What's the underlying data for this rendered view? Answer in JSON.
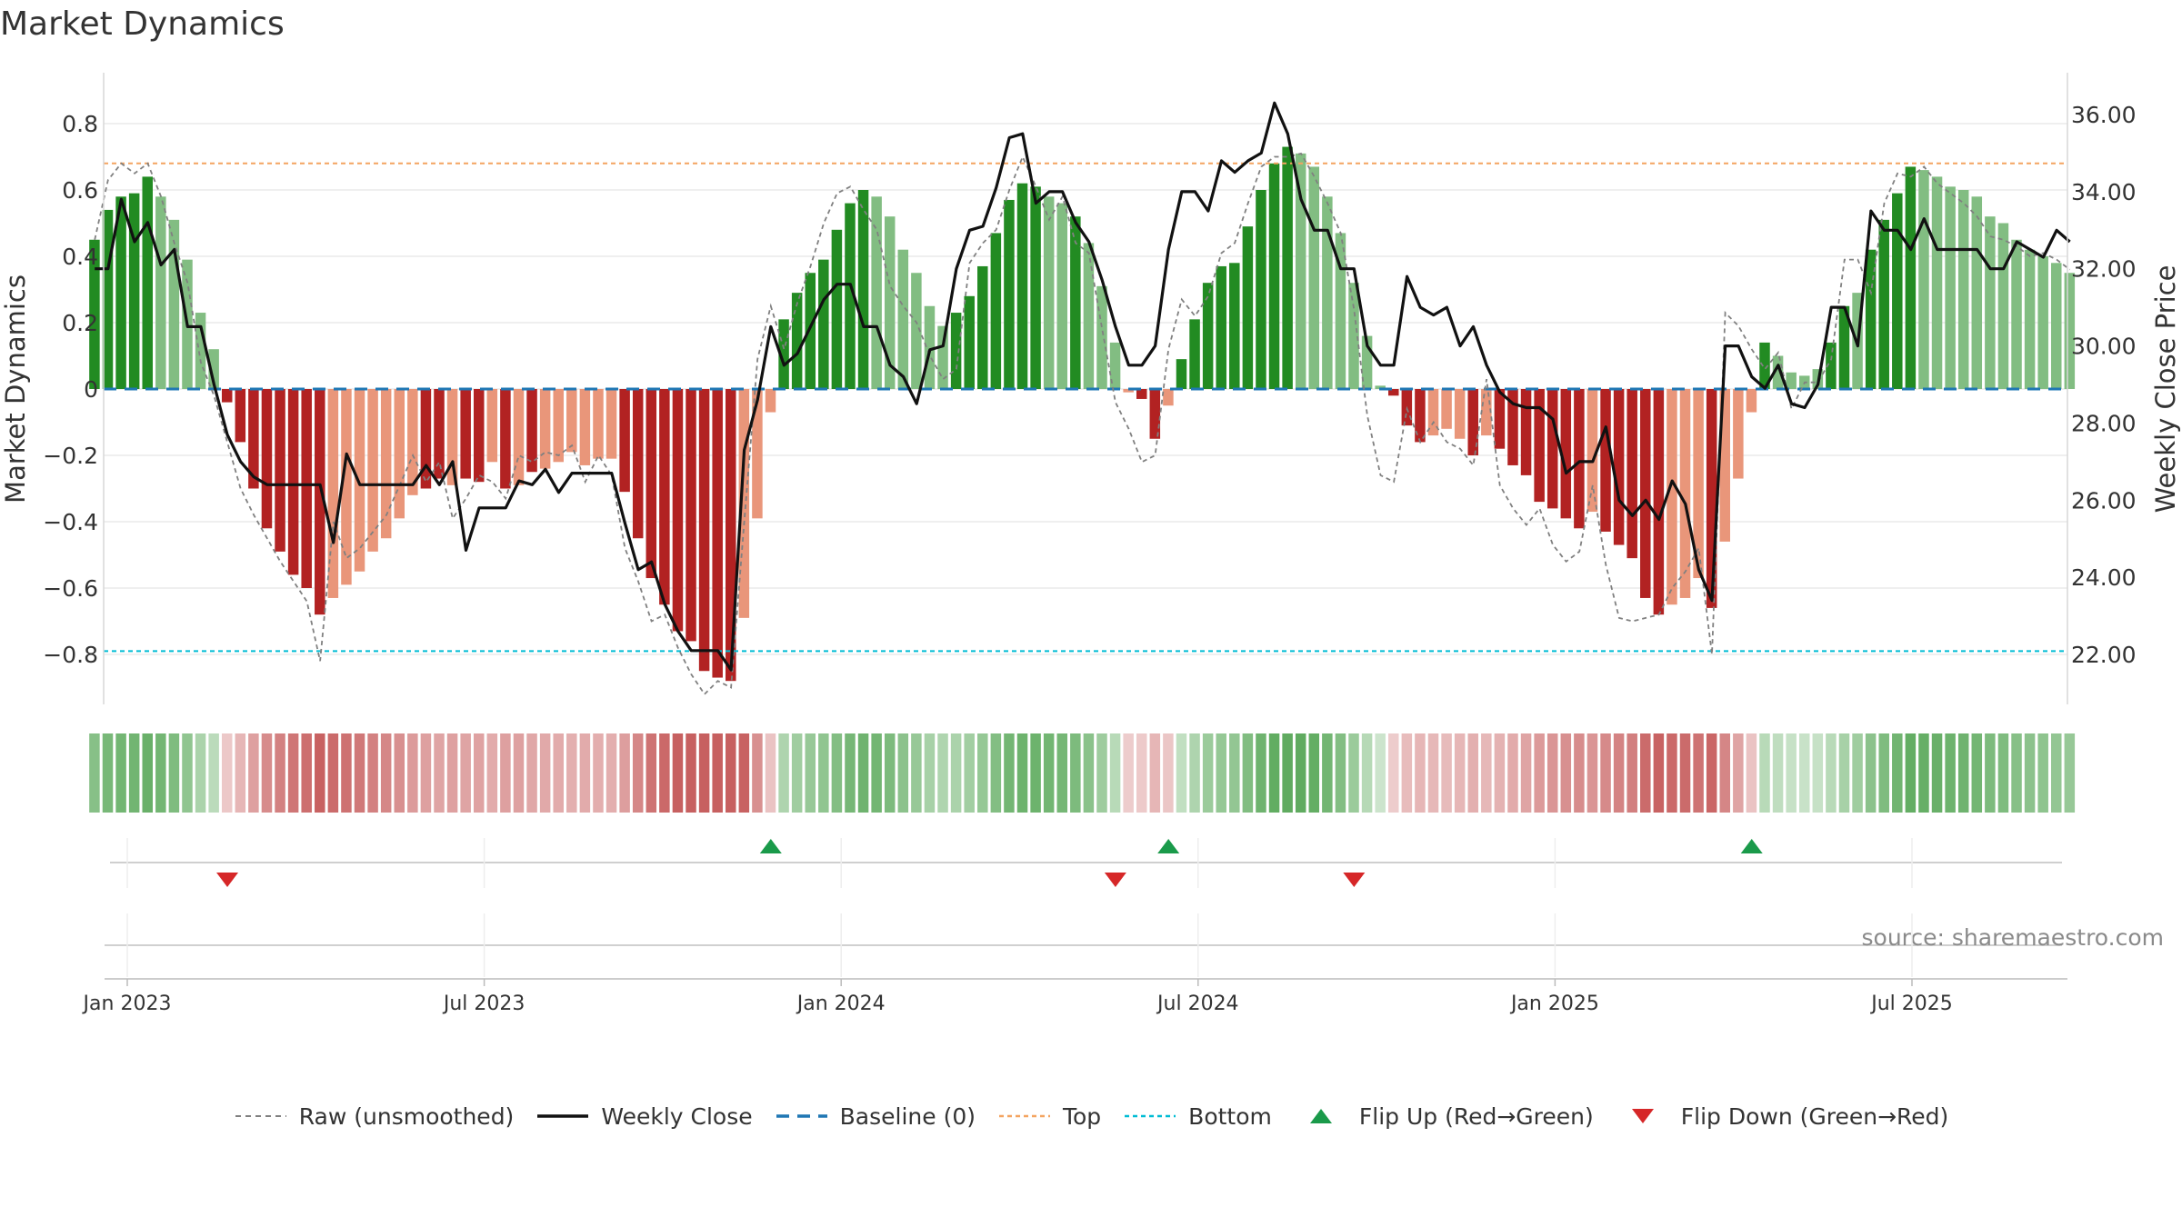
{
  "chart_data": {
    "type": "bar",
    "title": "Market Dynamics",
    "ylabel": "Market Dynamics",
    "y2label": "Weekly Close Price",
    "ylim": [
      -0.95,
      0.95
    ],
    "y2lim": [
      20.6,
      37.0
    ],
    "yticks": [
      "0.8",
      "0.6",
      "0.4",
      "0.2",
      "0",
      "−0.2",
      "−0.4",
      "−0.6",
      "−0.8"
    ],
    "y2ticks": [
      "36.00",
      "34.00",
      "32.00",
      "30.00",
      "28.00",
      "26.00",
      "24.00",
      "22.00"
    ],
    "xticks": [
      "Jan 2023",
      "Jul 2023",
      "Jan 2024",
      "Jul 2024",
      "Jan 2025",
      "Jul 2025"
    ],
    "reference_lines": {
      "top": 0.68,
      "bottom": -0.79,
      "baseline": 0
    },
    "colors": {
      "green_dark": "#228b22",
      "green_light": "#82bd82",
      "red_dark": "#b22222",
      "red_light": "#e9967a",
      "raw_line": "#808080",
      "close_line": "#111111",
      "baseline": "#1f77b4",
      "top": "#f4a460",
      "bottom": "#00bcd4",
      "flip_up": "#1a9a4a",
      "flip_down": "#d62728"
    },
    "momentum": [
      0.45,
      0.54,
      0.58,
      0.59,
      0.64,
      0.58,
      0.51,
      0.39,
      0.23,
      0.12,
      -0.04,
      -0.16,
      -0.3,
      -0.42,
      -0.49,
      -0.56,
      -0.6,
      -0.68,
      -0.63,
      -0.59,
      -0.55,
      -0.49,
      -0.45,
      -0.39,
      -0.32,
      -0.3,
      -0.27,
      -0.29,
      -0.27,
      -0.28,
      -0.22,
      -0.3,
      -0.29,
      -0.25,
      -0.24,
      -0.22,
      -0.19,
      -0.23,
      -0.21,
      -0.21,
      -0.31,
      -0.45,
      -0.57,
      -0.65,
      -0.73,
      -0.76,
      -0.85,
      -0.87,
      -0.88,
      -0.69,
      -0.39,
      -0.07,
      0.21,
      0.29,
      0.35,
      0.39,
      0.48,
      0.56,
      0.6,
      0.58,
      0.52,
      0.42,
      0.35,
      0.25,
      0.19,
      0.23,
      0.28,
      0.37,
      0.47,
      0.57,
      0.62,
      0.61,
      0.58,
      0.56,
      0.52,
      0.44,
      0.31,
      0.14,
      -0.01,
      -0.03,
      -0.15,
      -0.05,
      0.09,
      0.21,
      0.32,
      0.37,
      0.38,
      0.49,
      0.6,
      0.68,
      0.73,
      0.71,
      0.67,
      0.58,
      0.47,
      0.32,
      0.16,
      0.01,
      -0.02,
      -0.11,
      -0.16,
      -0.14,
      -0.12,
      -0.15,
      -0.2,
      -0.14,
      -0.18,
      -0.23,
      -0.26,
      -0.34,
      -0.36,
      -0.39,
      -0.42,
      -0.37,
      -0.43,
      -0.47,
      -0.51,
      -0.63,
      -0.68,
      -0.65,
      -0.63,
      -0.57,
      -0.66,
      -0.46,
      -0.27,
      -0.07,
      0.14,
      0.1,
      0.05,
      0.04,
      0.06,
      0.14,
      0.25,
      0.29,
      0.42,
      0.51,
      0.59,
      0.67,
      0.66,
      0.64,
      0.61,
      0.6,
      0.58,
      0.52,
      0.5,
      0.45,
      0.42,
      0.4,
      0.38,
      0.35
    ],
    "strength": [
      1,
      1,
      1,
      1,
      1,
      0,
      0,
      0,
      0,
      0,
      1,
      1,
      1,
      1,
      1,
      1,
      1,
      1,
      0,
      0,
      0,
      0,
      0,
      0,
      0,
      1,
      1,
      0,
      1,
      1,
      0,
      1,
      0,
      1,
      0,
      0,
      0,
      0,
      0,
      0,
      1,
      1,
      1,
      1,
      1,
      1,
      1,
      1,
      1,
      0,
      0,
      0,
      1,
      1,
      1,
      1,
      1,
      1,
      1,
      0,
      0,
      0,
      0,
      0,
      0,
      1,
      1,
      1,
      1,
      1,
      1,
      1,
      0,
      0,
      1,
      0,
      0,
      0,
      0,
      1,
      1,
      0,
      1,
      1,
      1,
      1,
      1,
      1,
      1,
      1,
      1,
      0,
      0,
      0,
      0,
      0,
      0,
      0,
      1,
      1,
      1,
      0,
      0,
      0,
      1,
      0,
      1,
      1,
      1,
      1,
      1,
      1,
      1,
      0,
      1,
      1,
      1,
      1,
      1,
      0,
      0,
      0,
      1,
      0,
      0,
      0,
      1,
      0,
      0,
      0,
      0,
      1,
      1,
      0,
      1,
      1,
      1,
      1,
      0,
      0,
      0,
      0,
      0,
      0,
      0,
      0,
      0,
      0,
      0,
      0
    ],
    "raw": [
      0.45,
      0.63,
      0.68,
      0.65,
      0.68,
      0.58,
      0.44,
      0.32,
      0.08,
      -0.02,
      -0.16,
      -0.3,
      -0.38,
      -0.45,
      -0.52,
      -0.58,
      -0.64,
      -0.82,
      -0.4,
      -0.51,
      -0.48,
      -0.43,
      -0.38,
      -0.29,
      -0.2,
      -0.28,
      -0.22,
      -0.39,
      -0.33,
      -0.26,
      -0.28,
      -0.33,
      -0.2,
      -0.22,
      -0.19,
      -0.2,
      -0.17,
      -0.28,
      -0.2,
      -0.26,
      -0.48,
      -0.58,
      -0.7,
      -0.68,
      -0.78,
      -0.86,
      -0.92,
      -0.88,
      -0.9,
      -0.4,
      0.09,
      0.25,
      0.12,
      0.26,
      0.37,
      0.5,
      0.59,
      0.61,
      0.54,
      0.48,
      0.31,
      0.25,
      0.2,
      0.1,
      0.03,
      0.06,
      0.38,
      0.44,
      0.48,
      0.6,
      0.7,
      0.61,
      0.51,
      0.58,
      0.44,
      0.41,
      0.18,
      -0.04,
      -0.12,
      -0.22,
      -0.2,
      0.12,
      0.27,
      0.22,
      0.28,
      0.41,
      0.44,
      0.56,
      0.67,
      0.7,
      0.7,
      0.71,
      0.64,
      0.56,
      0.47,
      0.24,
      -0.08,
      -0.26,
      -0.28,
      -0.06,
      -0.16,
      -0.1,
      -0.16,
      -0.18,
      -0.23,
      0.03,
      -0.29,
      -0.36,
      -0.41,
      -0.36,
      -0.47,
      -0.52,
      -0.49,
      -0.29,
      -0.53,
      -0.69,
      -0.7,
      -0.69,
      -0.68,
      -0.6,
      -0.55,
      -0.48,
      -0.8,
      0.23,
      0.19,
      0.12,
      0.06,
      0.11,
      -0.06,
      0.02,
      0.02,
      0.09,
      0.39,
      0.39,
      0.29,
      0.56,
      0.65,
      0.64,
      0.67,
      0.62,
      0.59,
      0.56,
      0.52,
      0.46,
      0.45,
      0.43,
      0.4,
      0.41,
      0.39,
      0.36
    ],
    "close": [
      32.0,
      32.0,
      33.8,
      32.7,
      33.2,
      32.1,
      32.5,
      30.5,
      30.5,
      29.0,
      27.7,
      27.0,
      26.6,
      26.4,
      26.4,
      26.4,
      26.4,
      26.4,
      24.9,
      27.2,
      26.4,
      26.4,
      26.4,
      26.4,
      26.4,
      26.9,
      26.4,
      27.0,
      24.7,
      25.8,
      25.8,
      25.8,
      26.5,
      26.4,
      26.8,
      26.2,
      26.7,
      26.7,
      26.7,
      26.7,
      25.4,
      24.2,
      24.4,
      23.3,
      22.6,
      22.1,
      22.1,
      22.1,
      21.6,
      27.3,
      28.6,
      30.5,
      29.5,
      29.8,
      30.5,
      31.2,
      31.6,
      31.6,
      30.5,
      30.5,
      29.5,
      29.2,
      28.5,
      29.9,
      30.0,
      32.0,
      33.0,
      33.1,
      34.1,
      35.4,
      35.5,
      33.7,
      34.0,
      34.0,
      33.2,
      32.7,
      31.7,
      30.5,
      29.5,
      29.5,
      30.0,
      32.5,
      34.0,
      34.0,
      33.5,
      34.8,
      34.5,
      34.8,
      35.0,
      36.3,
      35.5,
      33.8,
      33.0,
      33.0,
      32.0,
      32.0,
      30.0,
      29.5,
      29.5,
      31.8,
      31.0,
      30.8,
      31.0,
      30.0,
      30.5,
      29.5,
      28.8,
      28.5,
      28.4,
      28.4,
      28.1,
      26.7,
      27.0,
      27.0,
      27.9,
      26.0,
      25.6,
      26.0,
      25.5,
      26.5,
      25.9,
      24.2,
      23.4,
      30.0,
      30.0,
      29.2,
      28.9,
      29.5,
      28.5,
      28.4,
      29.0,
      31.0,
      31.0,
      30.0,
      33.5,
      33.0,
      33.0,
      32.5,
      33.3,
      32.5,
      32.5,
      32.5,
      32.5,
      32.0,
      32.0,
      32.7,
      32.5,
      32.3,
      33.0,
      32.7
    ],
    "flip_up_weeks": [
      51,
      81,
      125
    ],
    "flip_down_weeks": [
      10,
      77,
      95
    ],
    "first_week_offset": -1.6,
    "weeks_per_month_tick": 26.14,
    "source": "source: sharemaestro.com"
  },
  "legend": {
    "raw": "Raw (unsmoothed)",
    "close": "Weekly Close",
    "baseline": "Baseline (0)",
    "top": "Top",
    "bottom": "Bottom",
    "flip_up": "Flip Up (Red→Green)",
    "flip_down": "Flip Down (Green→Red)"
  }
}
